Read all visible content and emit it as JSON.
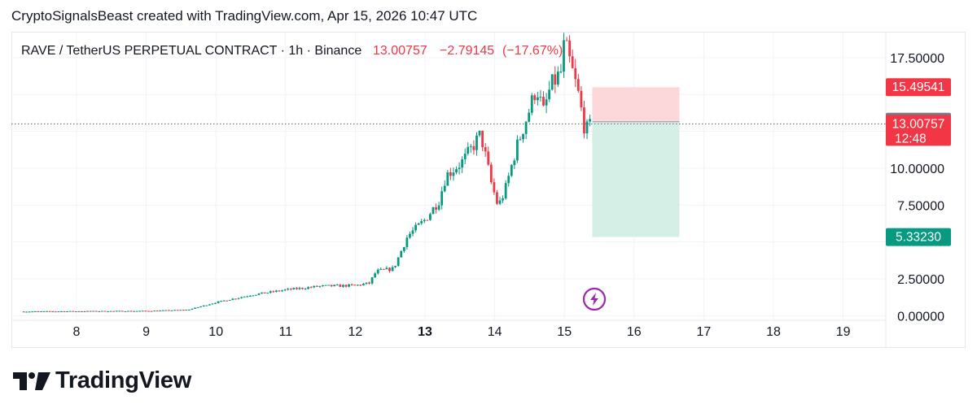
{
  "attribution": "CryptoSignalsBeast created with TradingView.com, Apr 15, 2026 10:47 UTC",
  "brand": {
    "name": "TradingView",
    "logo_icon": "tradingview-logo-icon"
  },
  "colors": {
    "up": "#089981",
    "down": "#f23645",
    "stop_zone": "#fdd8db",
    "target_zone": "#d5eee6",
    "neutral_label": "#787b86",
    "bolt": "#9c27b0",
    "grid": "#f0f3fa"
  },
  "chart_data": {
    "type": "candlestick",
    "symbol": "RAVE / TetherUS PERPETUAL CONTRACT",
    "interval": "1h",
    "exchange": "Binance",
    "header": {
      "title": "RAVE / TetherUS PERPETUAL CONTRACT · 1h · Binance",
      "last": "13.00757",
      "change": "−2.79145",
      "change_pct": "(−17.67%)"
    },
    "x_axis": {
      "ticks": [
        "8",
        "9",
        "10",
        "11",
        "12",
        "13",
        "14",
        "15",
        "16",
        "17",
        "18",
        "19"
      ],
      "bold_tick": "13",
      "range_days": [
        7.2,
        19.5
      ]
    },
    "y_axis": {
      "ticks": [
        "0.00000",
        "2.50000",
        "7.50000",
        "10.00000",
        "17.50000"
      ],
      "ylim": [
        -0.2,
        19.2
      ]
    },
    "price_labels": [
      {
        "value": 15.49541,
        "text": "15.49541",
        "kind": "stop"
      },
      {
        "value": 13.1508,
        "text": "13.15080",
        "kind": "entry"
      },
      {
        "value": 13.00757,
        "text": "13.00757",
        "sub": "12:48",
        "kind": "last"
      },
      {
        "value": 5.3323,
        "text": "5.33230",
        "kind": "target"
      }
    ],
    "position": {
      "type": "short",
      "entry": 13.1508,
      "stop": 15.49541,
      "target": 5.3323,
      "from_day": 15.4,
      "to_day": 16.65
    },
    "last_price": 13.00757,
    "path": [
      [
        7.2,
        0.28
      ],
      [
        8.0,
        0.3
      ],
      [
        9.0,
        0.32
      ],
      [
        9.6,
        0.4
      ],
      [
        10.0,
        0.9
      ],
      [
        10.5,
        1.4
      ],
      [
        11.0,
        1.75
      ],
      [
        11.5,
        2.0
      ],
      [
        12.0,
        2.05
      ],
      [
        12.2,
        2.2
      ],
      [
        12.3,
        3.0
      ],
      [
        12.55,
        3.2
      ],
      [
        12.75,
        5.4
      ],
      [
        13.0,
        6.5
      ],
      [
        13.2,
        7.8
      ],
      [
        13.3,
        9.5
      ],
      [
        13.55,
        10.5
      ],
      [
        13.8,
        12.3
      ],
      [
        13.95,
        9.0
      ],
      [
        14.05,
        7.4
      ],
      [
        14.15,
        8.5
      ],
      [
        14.3,
        11.2
      ],
      [
        14.5,
        14.0
      ],
      [
        14.6,
        15.5
      ],
      [
        14.7,
        13.8
      ],
      [
        14.8,
        15.5
      ],
      [
        14.95,
        16.5
      ],
      [
        15.0,
        18.5
      ],
      [
        15.1,
        16.8
      ],
      [
        15.2,
        15.0
      ],
      [
        15.3,
        12.5
      ],
      [
        15.4,
        13.0
      ]
    ]
  }
}
